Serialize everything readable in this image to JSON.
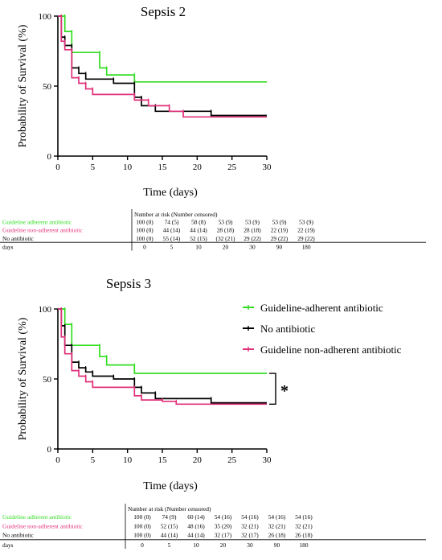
{
  "chart_data": [
    {
      "type": "line",
      "subtype": "kaplan-meier",
      "title": "Sepsis 2",
      "xlabel": "Time (days)",
      "ylabel": "Probability of Survival (%)",
      "xlim": [
        0,
        30
      ],
      "ylim": [
        0,
        100
      ],
      "xticks": [
        0,
        5,
        10,
        15,
        20,
        25,
        30
      ],
      "yticks": [
        0,
        50,
        100
      ],
      "grid": false,
      "legend": [],
      "series": [
        {
          "name": "Guideline adherent antibiotic",
          "color": "#33dd22",
          "points": [
            [
              0,
              100
            ],
            [
              1,
              100
            ],
            [
              1,
              89
            ],
            [
              2,
              89
            ],
            [
              2,
              74
            ],
            [
              6,
              74
            ],
            [
              6,
              63
            ],
            [
              7,
              63
            ],
            [
              7,
              58
            ],
            [
              11,
              58
            ],
            [
              11,
              53
            ],
            [
              30,
              53
            ]
          ]
        },
        {
          "name": "No antibiotic",
          "color": "#000000",
          "points": [
            [
              0,
              100
            ],
            [
              0.5,
              100
            ],
            [
              0.5,
              85
            ],
            [
              1,
              85
            ],
            [
              1,
              79
            ],
            [
              2,
              79
            ],
            [
              2,
              63
            ],
            [
              3,
              63
            ],
            [
              3,
              59
            ],
            [
              4,
              59
            ],
            [
              4,
              55
            ],
            [
              8,
              55
            ],
            [
              8,
              52
            ],
            [
              11,
              52
            ],
            [
              11,
              42
            ],
            [
              12,
              42
            ],
            [
              12,
              36
            ],
            [
              14,
              36
            ],
            [
              14,
              32
            ],
            [
              22,
              32
            ],
            [
              22,
              29
            ],
            [
              30,
              29
            ]
          ]
        },
        {
          "name": "Guideline non-adherent antibiotic",
          "color": "#e0307a",
          "points": [
            [
              0,
              100
            ],
            [
              0.5,
              100
            ],
            [
              0.5,
              82
            ],
            [
              1,
              82
            ],
            [
              1,
              76
            ],
            [
              2,
              76
            ],
            [
              2,
              56
            ],
            [
              3,
              56
            ],
            [
              3,
              52
            ],
            [
              4,
              52
            ],
            [
              4,
              48
            ],
            [
              5,
              48
            ],
            [
              5,
              44
            ],
            [
              11,
              44
            ],
            [
              11,
              40
            ],
            [
              13,
              40
            ],
            [
              13,
              36
            ],
            [
              16,
              36
            ],
            [
              16,
              32
            ],
            [
              18,
              32
            ],
            [
              18,
              28
            ],
            [
              30,
              28
            ]
          ]
        }
      ],
      "risk_table": {
        "header": "Number at risk (Number censored)",
        "days_label": "days",
        "days": [
          "0",
          "5",
          "10",
          "20",
          "30",
          "90",
          "180"
        ],
        "rows": [
          {
            "label": "Guideline adherent antibiotic",
            "color": "#33dd22",
            "values": [
              "100 (0)",
              "74 (5)",
              "58 (8)",
              "53 (9)",
              "53 (9)",
              "53 (9)",
              "53 (9)"
            ]
          },
          {
            "label": "Guideline non-adherent antibiotic",
            "color": "#e0307a",
            "values": [
              "100 (0)",
              "44 (14)",
              "44 (14)",
              "28 (18)",
              "28 (18)",
              "22 (19)",
              "22 (19)"
            ]
          },
          {
            "label": "No antibiotic",
            "color": "#000000",
            "values": [
              "100 (0)",
              "55 (14)",
              "52 (15)",
              "(32 (21)",
              "29 (22)",
              "29 (22)",
              "29 (22)"
            ]
          }
        ]
      }
    },
    {
      "type": "line",
      "subtype": "kaplan-meier",
      "title": "Sepsis 3",
      "xlabel": "Time (days)",
      "ylabel": "Probability of Survival (%)",
      "xlim": [
        0,
        30
      ],
      "ylim": [
        0,
        100
      ],
      "xticks": [
        0,
        5,
        10,
        15,
        20,
        25,
        30
      ],
      "yticks": [
        0,
        50,
        100
      ],
      "grid": false,
      "legend_position": "top-right",
      "legend": [
        {
          "label": "Guideline-adherent antibiotic",
          "color": "#33dd22"
        },
        {
          "label": "No antibiotic",
          "color": "#000000"
        },
        {
          "label": "Guideline non-adherent antibiotic",
          "color": "#e0307a"
        }
      ],
      "annotation": {
        "text": "*",
        "between_y": [
          54,
          32
        ],
        "at_x": 30
      },
      "series": [
        {
          "name": "Guideline-adherent antibiotic",
          "color": "#33dd22",
          "points": [
            [
              0,
              100
            ],
            [
              1,
              100
            ],
            [
              1,
              89
            ],
            [
              2,
              89
            ],
            [
              2,
              74
            ],
            [
              6,
              74
            ],
            [
              6,
              66
            ],
            [
              7,
              66
            ],
            [
              7,
              60
            ],
            [
              11,
              60
            ],
            [
              11,
              54
            ],
            [
              30,
              54
            ]
          ]
        },
        {
          "name": "No antibiotic",
          "color": "#000000",
          "points": [
            [
              0,
              100
            ],
            [
              0.5,
              100
            ],
            [
              0.5,
              88
            ],
            [
              1,
              88
            ],
            [
              1,
              74
            ],
            [
              2,
              74
            ],
            [
              2,
              62
            ],
            [
              3,
              62
            ],
            [
              3,
              58
            ],
            [
              4,
              58
            ],
            [
              4,
              55
            ],
            [
              5,
              55
            ],
            [
              5,
              52
            ],
            [
              8,
              52
            ],
            [
              8,
              50
            ],
            [
              11,
              50
            ],
            [
              11,
              44
            ],
            [
              12,
              44
            ],
            [
              12,
              40
            ],
            [
              14,
              40
            ],
            [
              14,
              36
            ],
            [
              22,
              36
            ],
            [
              22,
              33
            ],
            [
              30,
              33
            ]
          ]
        },
        {
          "name": "Guideline non-adherent antibiotic",
          "color": "#e0307a",
          "points": [
            [
              0,
              100
            ],
            [
              0.5,
              100
            ],
            [
              0.5,
              80
            ],
            [
              1,
              80
            ],
            [
              1,
              68
            ],
            [
              2,
              68
            ],
            [
              2,
              56
            ],
            [
              3,
              56
            ],
            [
              3,
              52
            ],
            [
              4,
              52
            ],
            [
              4,
              48
            ],
            [
              5,
              48
            ],
            [
              5,
              44
            ],
            [
              11,
              44
            ],
            [
              11,
              38
            ],
            [
              12,
              38
            ],
            [
              12,
              35
            ],
            [
              15,
              35
            ],
            [
              15,
              34
            ],
            [
              17,
              34
            ],
            [
              17,
              32
            ],
            [
              30,
              32
            ]
          ]
        }
      ],
      "risk_table": {
        "header": "Number at risk (Number censored)",
        "days_label": "days",
        "days": [
          "0",
          "5",
          "10",
          "20",
          "30",
          "90",
          "180"
        ],
        "rows": [
          {
            "label": "Guideline adherent antibiotic",
            "color": "#33dd22",
            "values": [
              "100 (0)",
              "74 (9)",
              "60 (14)",
              "54 (16)",
              "54 (16)",
              "54 (16)",
              "54 (16)"
            ]
          },
          {
            "label": "Guideline non-adherent antibiotic",
            "color": "#e0307a",
            "values": [
              "100 (0)",
              "52 (15)",
              "48 (16)",
              "35 (20)",
              "32 (21)",
              "32 (21)",
              "32 (21)"
            ]
          },
          {
            "label": "No antibiotic",
            "color": "#000000",
            "values": [
              "100 (0)",
              "44 (14)",
              "44 (14)",
              "32 (17)",
              "32 (17)",
              "26 (18)",
              "26 (18)"
            ]
          }
        ]
      }
    }
  ]
}
